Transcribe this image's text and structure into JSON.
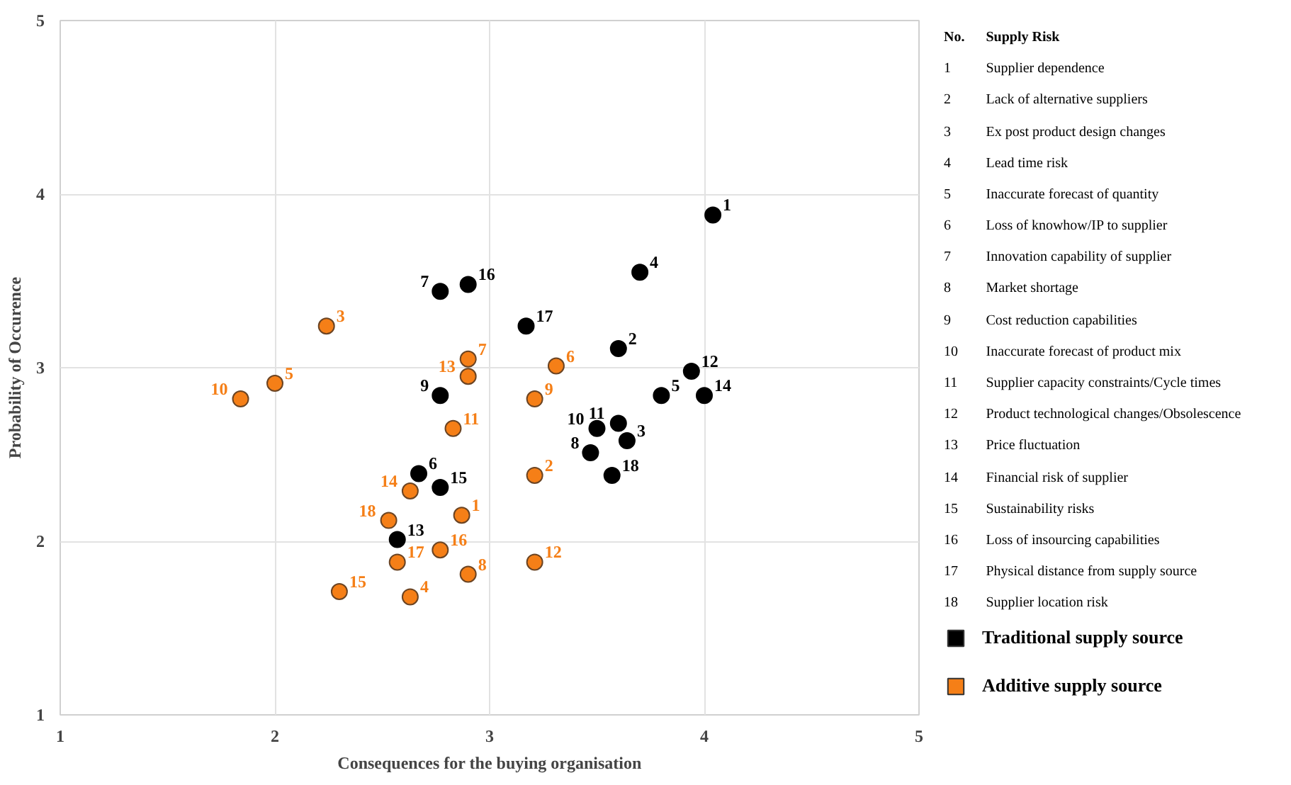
{
  "chart_data": {
    "type": "scatter",
    "xlabel": "Consequences for the buying organisation",
    "ylabel": "Probability of Occurence",
    "xlim": [
      1,
      5
    ],
    "ylim": [
      1,
      5
    ],
    "xticks": [
      1,
      2,
      3,
      4,
      5
    ],
    "yticks": [
      1,
      2,
      3,
      4,
      5
    ],
    "grid": true,
    "marker": "circle",
    "legend": "bottom right",
    "series": [
      {
        "name": "Traditional supply source",
        "color": "#000000",
        "x": [
          4.04,
          3.6,
          3.64,
          3.7,
          3.8,
          2.67,
          2.77,
          3.47,
          2.77,
          3.5,
          3.6,
          3.94,
          2.57,
          4.0,
          2.77,
          2.9,
          3.17,
          3.57
        ],
        "values": [
          3.88,
          3.11,
          2.58,
          3.55,
          2.84,
          2.39,
          3.44,
          2.51,
          2.84,
          2.65,
          2.68,
          2.98,
          2.01,
          2.84,
          2.31,
          3.48,
          3.24,
          2.38
        ]
      },
      {
        "name": "Additive supply source",
        "color": "#f57f17",
        "x": [
          2.87,
          3.21,
          2.24,
          2.63,
          2.0,
          3.31,
          2.9,
          2.9,
          3.21,
          1.84,
          2.83,
          3.21,
          2.9,
          2.63,
          2.3,
          2.77,
          2.57,
          2.53
        ],
        "values": [
          2.15,
          2.38,
          3.24,
          1.68,
          2.91,
          3.01,
          3.05,
          1.81,
          2.82,
          2.82,
          2.65,
          1.88,
          2.95,
          2.29,
          1.71,
          1.95,
          1.88,
          2.12
        ]
      }
    ],
    "annotations": [
      "No.",
      "Supply Risk",
      "1",
      "Supplier dependence",
      "2",
      "Lack of alternative suppliers",
      "3",
      "Ex post product design changes",
      "4",
      "Lead time risk",
      "5",
      "Inaccurate forecast of quantity",
      "6",
      "Loss of knowhow/IP to supplier",
      "7",
      "Innovation capability of supplier",
      "8",
      "Market shortage",
      "9",
      "Cost reduction capabilities",
      "10",
      "Inaccurate forecast of product mix",
      "11",
      "Supplier capacity constraints/Cycle times",
      "12",
      "Product technological changes/Obsolescence",
      "13",
      "Price fluctuation",
      "14",
      "Financial risk of supplier",
      "15",
      "Sustainability risks",
      "16",
      "Loss of insourcing capabilities",
      "17",
      "Physical distance from supply source",
      "18",
      "Supplier location risk",
      {
        "text": "1",
        "x": 4.04,
        "y": 3.88
      },
      {
        "text": "2",
        "x": 3.6,
        "y": 3.11
      },
      {
        "text": "3",
        "x": 3.64,
        "y": 2.58
      },
      {
        "text": "4",
        "x": 3.7,
        "y": 3.55
      },
      {
        "text": "5",
        "x": 3.8,
        "y": 2.84
      },
      {
        "text": "6",
        "x": 2.67,
        "y": 2.39
      },
      {
        "text": "7",
        "x": 2.77,
        "y": 3.44
      },
      {
        "text": "8",
        "x": 3.47,
        "y": 2.51
      },
      {
        "text": "9",
        "x": 2.77,
        "y": 2.84
      },
      {
        "text": "10",
        "x": 3.5,
        "y": 2.65
      },
      {
        "text": "11",
        "x": 3.6,
        "y": 2.68
      },
      {
        "text": "12",
        "x": 3.94,
        "y": 2.98
      },
      {
        "text": "13",
        "x": 2.57,
        "y": 2.01
      },
      {
        "text": "14",
        "x": 4.0,
        "y": 2.84
      },
      {
        "text": "15",
        "x": 2.77,
        "y": 2.31
      },
      {
        "text": "16",
        "x": 2.9,
        "y": 3.48
      },
      {
        "text": "17",
        "x": 3.17,
        "y": 3.24
      },
      {
        "text": "18",
        "x": 3.57,
        "y": 2.38
      },
      {
        "text": "1",
        "x": 2.87,
        "y": 2.15
      },
      {
        "text": "2",
        "x": 3.21,
        "y": 2.38
      },
      {
        "text": "3",
        "x": 2.24,
        "y": 3.24
      },
      {
        "text": "4",
        "x": 2.63,
        "y": 1.68
      },
      {
        "text": "5",
        "x": 2.0,
        "y": 2.91
      },
      {
        "text": "6",
        "x": 3.31,
        "y": 3.01
      },
      {
        "text": "7",
        "x": 2.9,
        "y": 3.05
      },
      {
        "text": "8",
        "x": 2.9,
        "y": 1.81
      },
      {
        "text": "9",
        "x": 3.21,
        "y": 2.82
      },
      {
        "text": "10",
        "x": 1.84,
        "y": 2.82
      },
      {
        "text": "11",
        "x": 2.83,
        "y": 2.65
      },
      {
        "text": "12",
        "x": 3.21,
        "y": 1.88
      },
      {
        "text": "13",
        "x": 2.9,
        "y": 2.95
      },
      {
        "text": "14",
        "x": 2.63,
        "y": 2.29
      },
      {
        "text": "15",
        "x": 2.3,
        "y": 1.71
      },
      {
        "text": "16",
        "x": 2.77,
        "y": 1.95
      },
      {
        "text": "17",
        "x": 2.57,
        "y": 1.88
      },
      {
        "text": "18",
        "x": 2.53,
        "y": 2.12
      }
    ]
  }
}
